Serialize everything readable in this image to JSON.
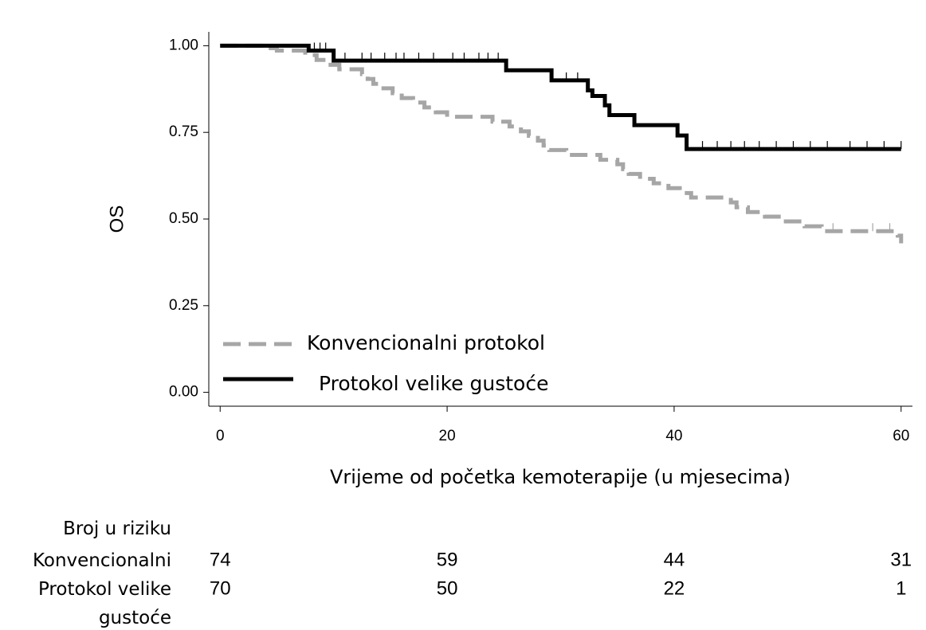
{
  "chart_data": {
    "type": "step",
    "y_label": "OS",
    "x_label": "Vrijeme od početka kemoterapije (u mjesecima)",
    "xlim": [
      -1,
      61
    ],
    "xticks": [
      0,
      20,
      40,
      60
    ],
    "ylim": [
      -0.04,
      1.04
    ],
    "yticks": [
      {
        "value": 0,
        "label": "0.00"
      },
      {
        "value": 0.25,
        "label": "0.25"
      },
      {
        "value": 0.5,
        "label": "0.50"
      },
      {
        "value": 0.75,
        "label": "0.75"
      },
      {
        "value": 1,
        "label": "1.00"
      }
    ],
    "legend": "lower left",
    "series": [
      {
        "name": "Konvencionalni protokol",
        "color": "#a6a6a6",
        "dash": true,
        "x": [
          0,
          4,
          5,
          7.5,
          8.5,
          9.5,
          10.5,
          12.5,
          13,
          13.5,
          14,
          15.2,
          16,
          17,
          18,
          19,
          20,
          24,
          25.5,
          26.5,
          27.2,
          28,
          28.5,
          29,
          30.5,
          33.5,
          35,
          35.5,
          36,
          37,
          38.2,
          39.5,
          40.5,
          41.5,
          45,
          45.5,
          46.5,
          48,
          49.5,
          51.5,
          53,
          59.7,
          60
        ],
        "values": [
          1,
          0.993,
          0.986,
          0.973,
          0.959,
          0.945,
          0.932,
          0.918,
          0.904,
          0.89,
          0.877,
          0.863,
          0.849,
          0.836,
          0.822,
          0.808,
          0.795,
          0.781,
          0.767,
          0.753,
          0.74,
          0.726,
          0.712,
          0.699,
          0.685,
          0.671,
          0.658,
          0.644,
          0.63,
          0.616,
          0.603,
          0.589,
          0.575,
          0.562,
          0.548,
          0.534,
          0.52,
          0.507,
          0.493,
          0.479,
          0.465,
          0.452,
          0.43
        ],
        "censored": [
          54,
          57.5,
          59
        ]
      },
      {
        "name": "Protokol velike gustoće",
        "color": "#000000",
        "dash": false,
        "x": [
          0,
          7.8,
          10,
          25.2,
          29.2,
          32.4,
          32.8,
          33.9,
          34.3,
          36.5,
          40.3,
          41.1,
          60
        ],
        "values": [
          1,
          0.986,
          0.957,
          0.929,
          0.9,
          0.871,
          0.855,
          0.828,
          0.8,
          0.771,
          0.741,
          0.702,
          0.702
        ],
        "censored": [
          8.3,
          8.8,
          9.3,
          11,
          12.5,
          13.3,
          14.5,
          15.5,
          16.2,
          17.5,
          18.8,
          20.5,
          21.5,
          22.8,
          23.6,
          24.5,
          30.5,
          31.5,
          42.5,
          43.8,
          45,
          46.2,
          47.5,
          49,
          50.5,
          52,
          53.5,
          55.5,
          57,
          58.5,
          60
        ]
      }
    ],
    "risk_table": {
      "title": "Broj u riziku",
      "rows": [
        {
          "label": "Konvencionalni",
          "values": [
            74,
            59,
            44,
            31
          ]
        },
        {
          "label": "Protokol velike gustoće",
          "values": [
            70,
            50,
            22,
            1
          ]
        }
      ]
    }
  }
}
